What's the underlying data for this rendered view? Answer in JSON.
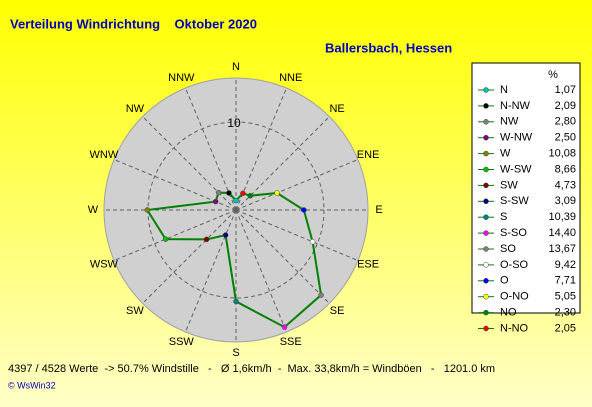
{
  "chart_data": {
    "type": "radar",
    "title": "Verteilung Windrichtung    Oktober 2020",
    "subtitle": "Ballersbach, Hessen",
    "categories": [
      "N",
      "NNW",
      "NW",
      "WNW",
      "W",
      "WSW",
      "SW",
      "SSW",
      "S",
      "SSE",
      "SE",
      "ESE",
      "E",
      "ENE",
      "NE",
      "NNE"
    ],
    "legend_title": "%",
    "legend_labels": [
      "N",
      "N-NW",
      "NW",
      "W-NW",
      "W",
      "W-SW",
      "SW",
      "S-SW",
      "S",
      "S-SO",
      "SO",
      "O-SO",
      "O",
      "O-NO",
      "NO",
      "N-NO"
    ],
    "values": [
      1.07,
      2.09,
      2.8,
      2.5,
      10.08,
      8.66,
      4.73,
      3.09,
      10.39,
      14.4,
      13.67,
      9.42,
      7.71,
      5.05,
      2.3,
      2.05
    ],
    "value_labels": [
      "1,07",
      "2,09",
      "2,80",
      "2,50",
      "10,08",
      "8,66",
      "4,73",
      "3,09",
      "10,39",
      "14,40",
      "13,67",
      "9,42",
      "7,71",
      "5,05",
      "2,30",
      "2,05"
    ],
    "marker_colors": [
      "#00c0c0",
      "#000000",
      "#808080",
      "#800080",
      "#808000",
      "#00c000",
      "#800000",
      "#000080",
      "#008080",
      "#ff00ff",
      "#808080",
      "#ffffff",
      "#0000ff",
      "#ffff00",
      "#008000",
      "#ff0000"
    ],
    "line_color": "#008000",
    "rlim": [
      0,
      15
    ],
    "rticks": [
      10
    ],
    "footer": "4397 / 4528 Werte  -> 50.7% Windstille   -   Ø 1,6km/h  -  Max. 33,8km/h = Windböen   -   1201.0 km",
    "credit": "© WsWin32"
  }
}
